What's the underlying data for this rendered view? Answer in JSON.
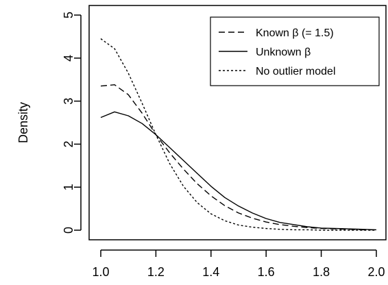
{
  "chart_data": {
    "type": "line",
    "title": "",
    "xlabel": "",
    "ylabel": "Density",
    "xlim": [
      1.0,
      2.0
    ],
    "ylim": [
      0,
      5
    ],
    "xticks": [
      "1.0",
      "1.2",
      "1.4",
      "1.6",
      "1.8",
      "2.0"
    ],
    "yticks": [
      "0",
      "1",
      "2",
      "3",
      "4",
      "5"
    ],
    "grid": false,
    "legend_position": "top-right",
    "x": [
      1.0,
      1.05,
      1.1,
      1.15,
      1.2,
      1.25,
      1.3,
      1.35,
      1.4,
      1.45,
      1.5,
      1.55,
      1.6,
      1.65,
      1.7,
      1.75,
      1.8,
      1.85,
      1.9,
      1.95,
      2.0
    ],
    "series": [
      {
        "name": "Known β (= 1.5)",
        "line_style": "dashed",
        "color": "#000000",
        "values": [
          3.35,
          3.38,
          3.15,
          2.72,
          2.22,
          1.8,
          1.42,
          1.08,
          0.8,
          0.57,
          0.4,
          0.28,
          0.19,
          0.13,
          0.09,
          0.06,
          0.04,
          0.03,
          0.02,
          0.01,
          0.01
        ]
      },
      {
        "name": "Unknown β",
        "line_style": "solid",
        "color": "#000000",
        "values": [
          2.62,
          2.75,
          2.66,
          2.48,
          2.22,
          1.92,
          1.62,
          1.32,
          1.02,
          0.76,
          0.56,
          0.4,
          0.27,
          0.18,
          0.13,
          0.08,
          0.05,
          0.04,
          0.03,
          0.02,
          0.01
        ]
      },
      {
        "name": "No outlier model",
        "line_style": "dotted",
        "color": "#000000",
        "values": [
          4.45,
          4.22,
          3.65,
          2.95,
          2.22,
          1.55,
          1.02,
          0.64,
          0.38,
          0.22,
          0.12,
          0.07,
          0.04,
          0.02,
          0.01,
          0.01,
          0.0,
          0.0,
          0.0,
          0.0,
          0.0
        ]
      }
    ]
  }
}
